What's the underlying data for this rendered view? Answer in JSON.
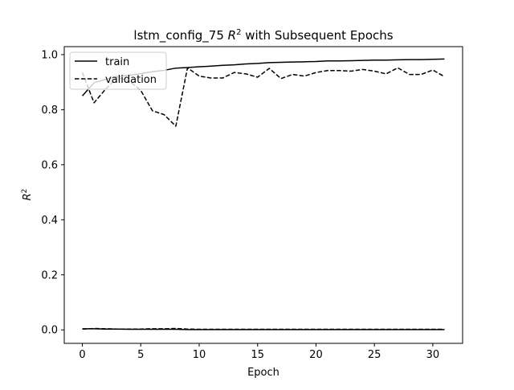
{
  "chart_data": {
    "type": "line",
    "title_prefix": "lstm_config_75 ",
    "title_var": "R",
    "title_sup": "2",
    "title_suffix": " with Subsequent Epochs",
    "xlabel": "Epoch",
    "ylabel_var": "R",
    "ylabel_sup": "2",
    "xlim": [
      -1.55,
      32.55
    ],
    "ylim": [
      -0.049,
      1.029
    ],
    "xticks": [
      0,
      5,
      10,
      15,
      20,
      25,
      30
    ],
    "yticks": [
      0.0,
      0.2,
      0.4,
      0.6,
      0.8,
      1.0
    ],
    "ytick_labels": [
      "0.0",
      "0.2",
      "0.4",
      "0.6",
      "0.8",
      "1.0"
    ],
    "grid": false,
    "legend_position": "top-left",
    "x": [
      0,
      1,
      2,
      3,
      4,
      5,
      6,
      7,
      8,
      9,
      10,
      11,
      12,
      13,
      14,
      15,
      16,
      17,
      18,
      19,
      20,
      21,
      22,
      23,
      24,
      25,
      26,
      27,
      28,
      29,
      30,
      31
    ],
    "series": [
      {
        "name": "train",
        "style": "solid",
        "color": "#000000",
        "values": [
          0.85,
          0.898,
          0.91,
          0.92,
          0.925,
          0.931,
          0.938,
          0.943,
          0.951,
          0.953,
          0.956,
          0.958,
          0.961,
          0.963,
          0.966,
          0.968,
          0.971,
          0.972,
          0.973,
          0.974,
          0.975,
          0.977,
          0.977,
          0.978,
          0.979,
          0.98,
          0.98,
          0.981,
          0.982,
          0.982,
          0.983,
          0.984
        ]
      },
      {
        "name": "validation",
        "style": "dashed",
        "color": "#000000",
        "values": [
          0.935,
          0.825,
          0.875,
          0.918,
          0.905,
          0.87,
          0.796,
          0.782,
          0.74,
          0.952,
          0.922,
          0.915,
          0.915,
          0.935,
          0.93,
          0.918,
          0.95,
          0.913,
          0.928,
          0.922,
          0.935,
          0.942,
          0.942,
          0.94,
          0.946,
          0.94,
          0.93,
          0.952,
          0.928,
          0.928,
          0.944,
          0.92
        ]
      },
      {
        "name": "",
        "style": "solid",
        "color": "#000000",
        "values": [
          0.004,
          0.004,
          0.003,
          0.003,
          0.002,
          0.002,
          0.002,
          0.002,
          0.002,
          0.001,
          0.001,
          0.001,
          0.001,
          0.001,
          0.001,
          0.001,
          0.001,
          0.001,
          0.001,
          0.001,
          0.001,
          0.001,
          0.001,
          0.001,
          0.001,
          0.001,
          0.001,
          0.001,
          0.001,
          0.001,
          0.001,
          0.001
        ]
      },
      {
        "name": "",
        "style": "dashed",
        "color": "#000000",
        "values": [
          0.003,
          0.005,
          0.004,
          0.003,
          0.003,
          0.003,
          0.004,
          0.004,
          0.005,
          0.003,
          0.002,
          0.002,
          0.002,
          0.002,
          0.002,
          0.002,
          0.002,
          0.002,
          0.002,
          0.002,
          0.002,
          0.002,
          0.002,
          0.002,
          0.002,
          0.002,
          0.002,
          0.002,
          0.002,
          0.002,
          0.002,
          0.002
        ]
      }
    ]
  }
}
